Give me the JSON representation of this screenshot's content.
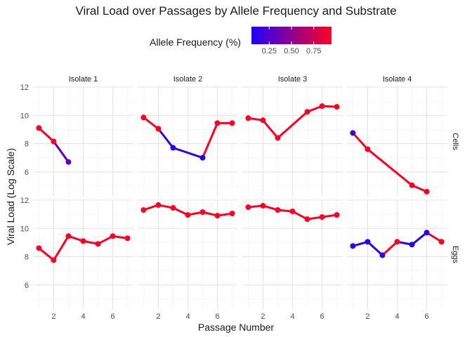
{
  "chart_data": {
    "type": "line",
    "title": "Viral Load over Passages by Allele Frequency and Substrate",
    "xlabel": "Passage Number",
    "ylabel": "Viral Load (Log Scale)",
    "xlim": [
      0.6,
      7.4
    ],
    "ylim": [
      4.3,
      12
    ],
    "x_ticks": [
      2,
      4,
      6
    ],
    "y_ticks": [
      6,
      8,
      10,
      12
    ],
    "columns": [
      "Isolate 1",
      "Isolate 2",
      "Isolate 3",
      "Isolate 4"
    ],
    "rows": [
      "Cells",
      "Eggs"
    ],
    "legend": {
      "title": "Allele Frequency (%)",
      "ticks": [
        0.25,
        0.5,
        0.75
      ],
      "tick_labels": [
        "0.25",
        "0.50",
        "0.75"
      ],
      "range": [
        0.05,
        0.95
      ],
      "low_color": "#1f00ff",
      "high_color": "#ff0022",
      "placement": "top"
    },
    "panels": [
      {
        "column": "Isolate 1",
        "row": "Cells",
        "points": [
          {
            "x": 1,
            "y": 9.1,
            "f": 0.95
          },
          {
            "x": 2,
            "y": 8.15,
            "f": 0.92
          },
          {
            "x": 3,
            "y": 6.7,
            "f": 0.3
          }
        ]
      },
      {
        "column": "Isolate 2",
        "row": "Cells",
        "points": [
          {
            "x": 1,
            "y": 9.85,
            "f": 0.95
          },
          {
            "x": 2,
            "y": 9.05,
            "f": 0.95
          },
          {
            "x": 3,
            "y": 7.7,
            "f": 0.1
          },
          {
            "x": 5,
            "y": 7.0,
            "f": 0.1
          },
          {
            "x": 6,
            "y": 9.45,
            "f": 0.95
          },
          {
            "x": 7,
            "y": 9.45,
            "f": 0.95
          }
        ]
      },
      {
        "column": "Isolate 3",
        "row": "Cells",
        "points": [
          {
            "x": 1,
            "y": 9.8,
            "f": 0.95
          },
          {
            "x": 2,
            "y": 9.65,
            "f": 0.95
          },
          {
            "x": 3,
            "y": 8.4,
            "f": 0.95
          },
          {
            "x": 5,
            "y": 10.25,
            "f": 0.95
          },
          {
            "x": 6,
            "y": 10.65,
            "f": 0.95
          },
          {
            "x": 7,
            "y": 10.6,
            "f": 0.95
          }
        ]
      },
      {
        "column": "Isolate 4",
        "row": "Cells",
        "points": [
          {
            "x": 1,
            "y": 8.75,
            "f": 0.1
          },
          {
            "x": 2,
            "y": 7.6,
            "f": 0.95
          },
          {
            "x": 5,
            "y": 5.05,
            "f": 0.95
          },
          {
            "x": 6,
            "y": 4.6,
            "f": 0.95
          }
        ]
      },
      {
        "column": "Isolate 1",
        "row": "Eggs",
        "points": [
          {
            "x": 1,
            "y": 8.6,
            "f": 0.95
          },
          {
            "x": 2,
            "y": 7.75,
            "f": 0.95
          },
          {
            "x": 3,
            "y": 9.45,
            "f": 0.95
          },
          {
            "x": 4,
            "y": 9.1,
            "f": 0.95
          },
          {
            "x": 5,
            "y": 8.9,
            "f": 0.95
          },
          {
            "x": 6,
            "y": 9.45,
            "f": 0.95
          },
          {
            "x": 7,
            "y": 9.3,
            "f": 0.95
          }
        ]
      },
      {
        "column": "Isolate 2",
        "row": "Eggs",
        "points": [
          {
            "x": 1,
            "y": 11.3,
            "f": 0.95
          },
          {
            "x": 2,
            "y": 11.65,
            "f": 0.95
          },
          {
            "x": 3,
            "y": 11.45,
            "f": 0.95
          },
          {
            "x": 4,
            "y": 10.95,
            "f": 0.95
          },
          {
            "x": 5,
            "y": 11.15,
            "f": 0.95
          },
          {
            "x": 6,
            "y": 10.9,
            "f": 0.95
          },
          {
            "x": 7,
            "y": 11.05,
            "f": 0.95
          }
        ]
      },
      {
        "column": "Isolate 3",
        "row": "Eggs",
        "points": [
          {
            "x": 1,
            "y": 11.5,
            "f": 0.95
          },
          {
            "x": 2,
            "y": 11.6,
            "f": 0.95
          },
          {
            "x": 3,
            "y": 11.3,
            "f": 0.95
          },
          {
            "x": 4,
            "y": 11.2,
            "f": 0.95
          },
          {
            "x": 5,
            "y": 10.65,
            "f": 0.95
          },
          {
            "x": 6,
            "y": 10.8,
            "f": 0.95
          },
          {
            "x": 7,
            "y": 10.95,
            "f": 0.95
          }
        ]
      },
      {
        "column": "Isolate 4",
        "row": "Eggs",
        "points": [
          {
            "x": 1,
            "y": 8.75,
            "f": 0.1
          },
          {
            "x": 2,
            "y": 9.05,
            "f": 0.1
          },
          {
            "x": 3,
            "y": 8.1,
            "f": 0.1
          },
          {
            "x": 4,
            "y": 9.05,
            "f": 0.95
          },
          {
            "x": 5,
            "y": 8.85,
            "f": 0.1
          },
          {
            "x": 6,
            "y": 9.7,
            "f": 0.1
          },
          {
            "x": 7,
            "y": 9.05,
            "f": 0.95
          }
        ]
      }
    ]
  }
}
